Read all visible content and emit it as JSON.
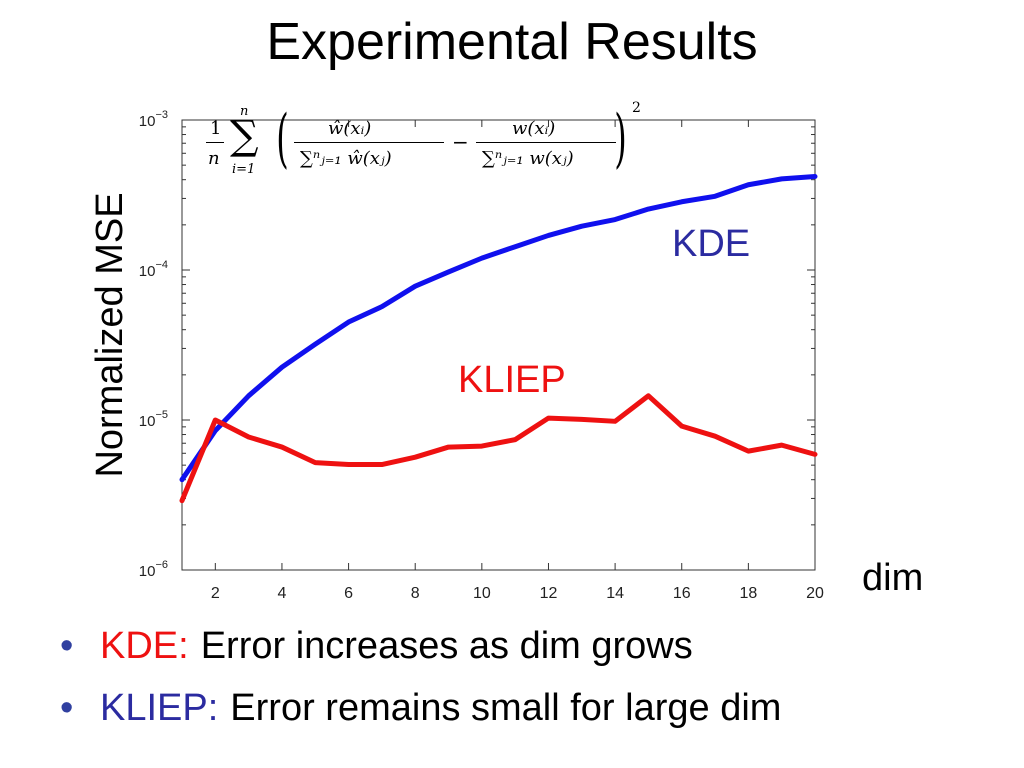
{
  "slide": {
    "title": "Experimental Results"
  },
  "chart_data": {
    "type": "line",
    "xlabel": "dim",
    "ylabel": "Normalized MSE",
    "x": [
      1,
      2,
      3,
      4,
      5,
      6,
      7,
      8,
      9,
      10,
      11,
      12,
      13,
      14,
      15,
      16,
      17,
      18,
      19,
      20
    ],
    "xticks": [
      2,
      4,
      6,
      8,
      10,
      12,
      14,
      16,
      18,
      20
    ],
    "xlim": [
      1,
      20
    ],
    "ylim": [
      1e-06,
      0.001
    ],
    "yscale": "log",
    "yticks": [
      {
        "value": 1e-06,
        "base": "10",
        "exp": "−6"
      },
      {
        "value": 1e-05,
        "base": "10",
        "exp": "−5"
      },
      {
        "value": 0.0001,
        "base": "10",
        "exp": "−4"
      },
      {
        "value": 0.001,
        "base": "10",
        "exp": "−3"
      }
    ],
    "grid": false,
    "series": [
      {
        "name": "KDE",
        "color": "#1010ee",
        "values": [
          4e-06,
          8.5e-06,
          1.45e-05,
          2.25e-05,
          3.2e-05,
          4.5e-05,
          5.7e-05,
          7.8e-05,
          9.7e-05,
          0.00012,
          0.000143,
          0.00017,
          0.000196,
          0.000217,
          0.000255,
          0.000285,
          0.00031,
          0.00037,
          0.000405,
          0.00042
        ]
      },
      {
        "name": "KLIEP",
        "color": "#ee1111",
        "values": [
          2.9e-06,
          1e-05,
          7.7e-06,
          6.6e-06,
          5.2e-06,
          5.05e-06,
          5.05e-06,
          5.65e-06,
          6.6e-06,
          6.7e-06,
          7.4e-06,
          1.03e-05,
          1.01e-05,
          9.8e-06,
          1.45e-05,
          9.1e-06,
          7.8e-06,
          6.2e-06,
          6.8e-06,
          5.9e-06
        ]
      }
    ],
    "annotations": [
      {
        "text": "KDE",
        "color": "#2b2ba0",
        "series": "KDE"
      },
      {
        "text": "KLIEP",
        "color": "#ee1111",
        "series": "KLIEP"
      }
    ],
    "formula": {
      "frac1_num": "1",
      "frac1_den": "n",
      "sum_upper": "n",
      "sum_lower": "i=1",
      "sigma": "∑",
      "num_left": "ŵ(xᵢ)",
      "den_left": "∑ⁿⱼ₌₁ ŵ(xⱼ)",
      "minus": "−",
      "num_right": "w(xᵢ)",
      "den_right": "∑ⁿⱼ₌₁ w(xⱼ)",
      "power": "2"
    }
  },
  "bullets": [
    {
      "key": "KDE:",
      "key_color": "#ee1111",
      "text": "Error increases as dim grows"
    },
    {
      "key": "KLIEP:",
      "key_color": "#2b2ba0",
      "text": "Error remains small for large dim"
    }
  ],
  "bullet_glyph": "•"
}
